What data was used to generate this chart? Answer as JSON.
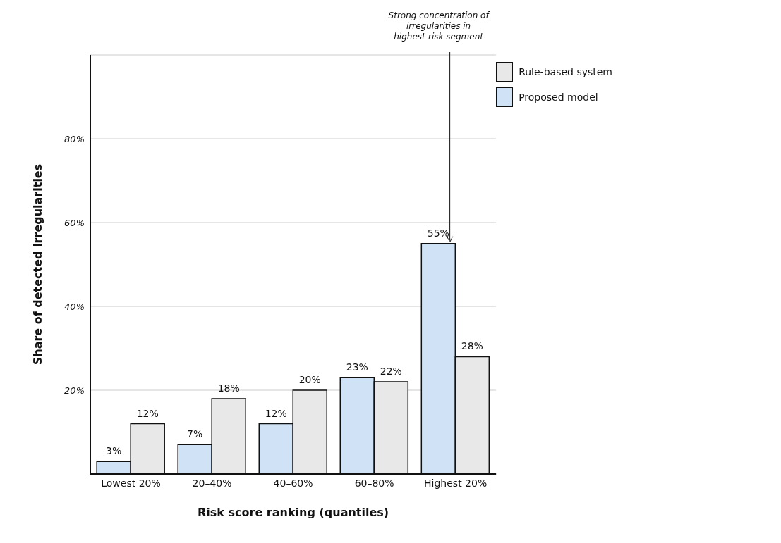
{
  "chart_data": {
    "type": "bar",
    "xlabel": "Risk score ranking (quantiles)",
    "ylabel": "Share of detected irregularities",
    "categories": [
      "Lowest 20%",
      "20–40%",
      "40–60%",
      "60–80%",
      "Highest 20%"
    ],
    "series": [
      {
        "name": "Proposed model",
        "color": "#cfe2f6",
        "values": [
          3,
          7,
          12,
          23,
          55
        ],
        "value_labels": [
          "3%",
          "7%",
          "12%",
          "23%",
          "55%"
        ]
      },
      {
        "name": "Rule-based system",
        "color": "#e8e8e8",
        "values": [
          12,
          18,
          20,
          22,
          28
        ],
        "value_labels": [
          "12%",
          "18%",
          "20%",
          "22%",
          "28%"
        ]
      }
    ],
    "ylim": [
      0,
      100
    ],
    "yticks": [
      {
        "value": 20,
        "label": "20%"
      },
      {
        "value": 40,
        "label": "40%"
      },
      {
        "value": 60,
        "label": "60%"
      },
      {
        "value": 80,
        "label": "80%"
      }
    ],
    "grid": "y",
    "legend": "top right",
    "annotations": [
      "Strong concentration of irregularities in highest-risk segment"
    ]
  }
}
